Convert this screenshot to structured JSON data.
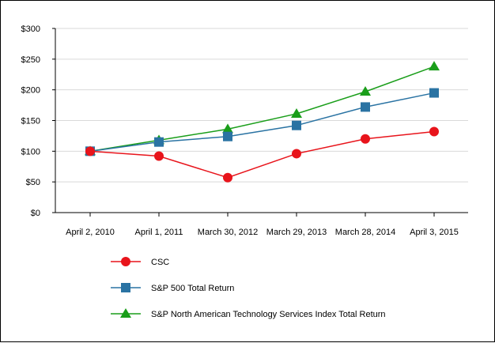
{
  "chart_data": {
    "type": "line",
    "categories": [
      "April 2, 2010",
      "April 1, 2011",
      "March 30, 2012",
      "March 29, 2013",
      "March 28, 2014",
      "April 3, 2015"
    ],
    "y_ticks": [
      "$0",
      "$50",
      "$100",
      "$150",
      "$200",
      "$250",
      "$300"
    ],
    "ylim": [
      0,
      300
    ],
    "grid": true,
    "legend_placement": "bottom",
    "series": [
      {
        "name": "CSC",
        "color": "#e8141b",
        "marker": "circle",
        "values": [
          100,
          92,
          57,
          96,
          120,
          132
        ]
      },
      {
        "name": "S&P 500 Total Return",
        "color": "#2a73a3",
        "marker": "square",
        "values": [
          100,
          115,
          124,
          142,
          172,
          195
        ]
      },
      {
        "name": "S&P North American Technology Services Index Total Return",
        "color": "#1a9e1a",
        "marker": "triangle",
        "values": [
          100,
          118,
          136,
          161,
          197,
          238
        ]
      }
    ]
  }
}
